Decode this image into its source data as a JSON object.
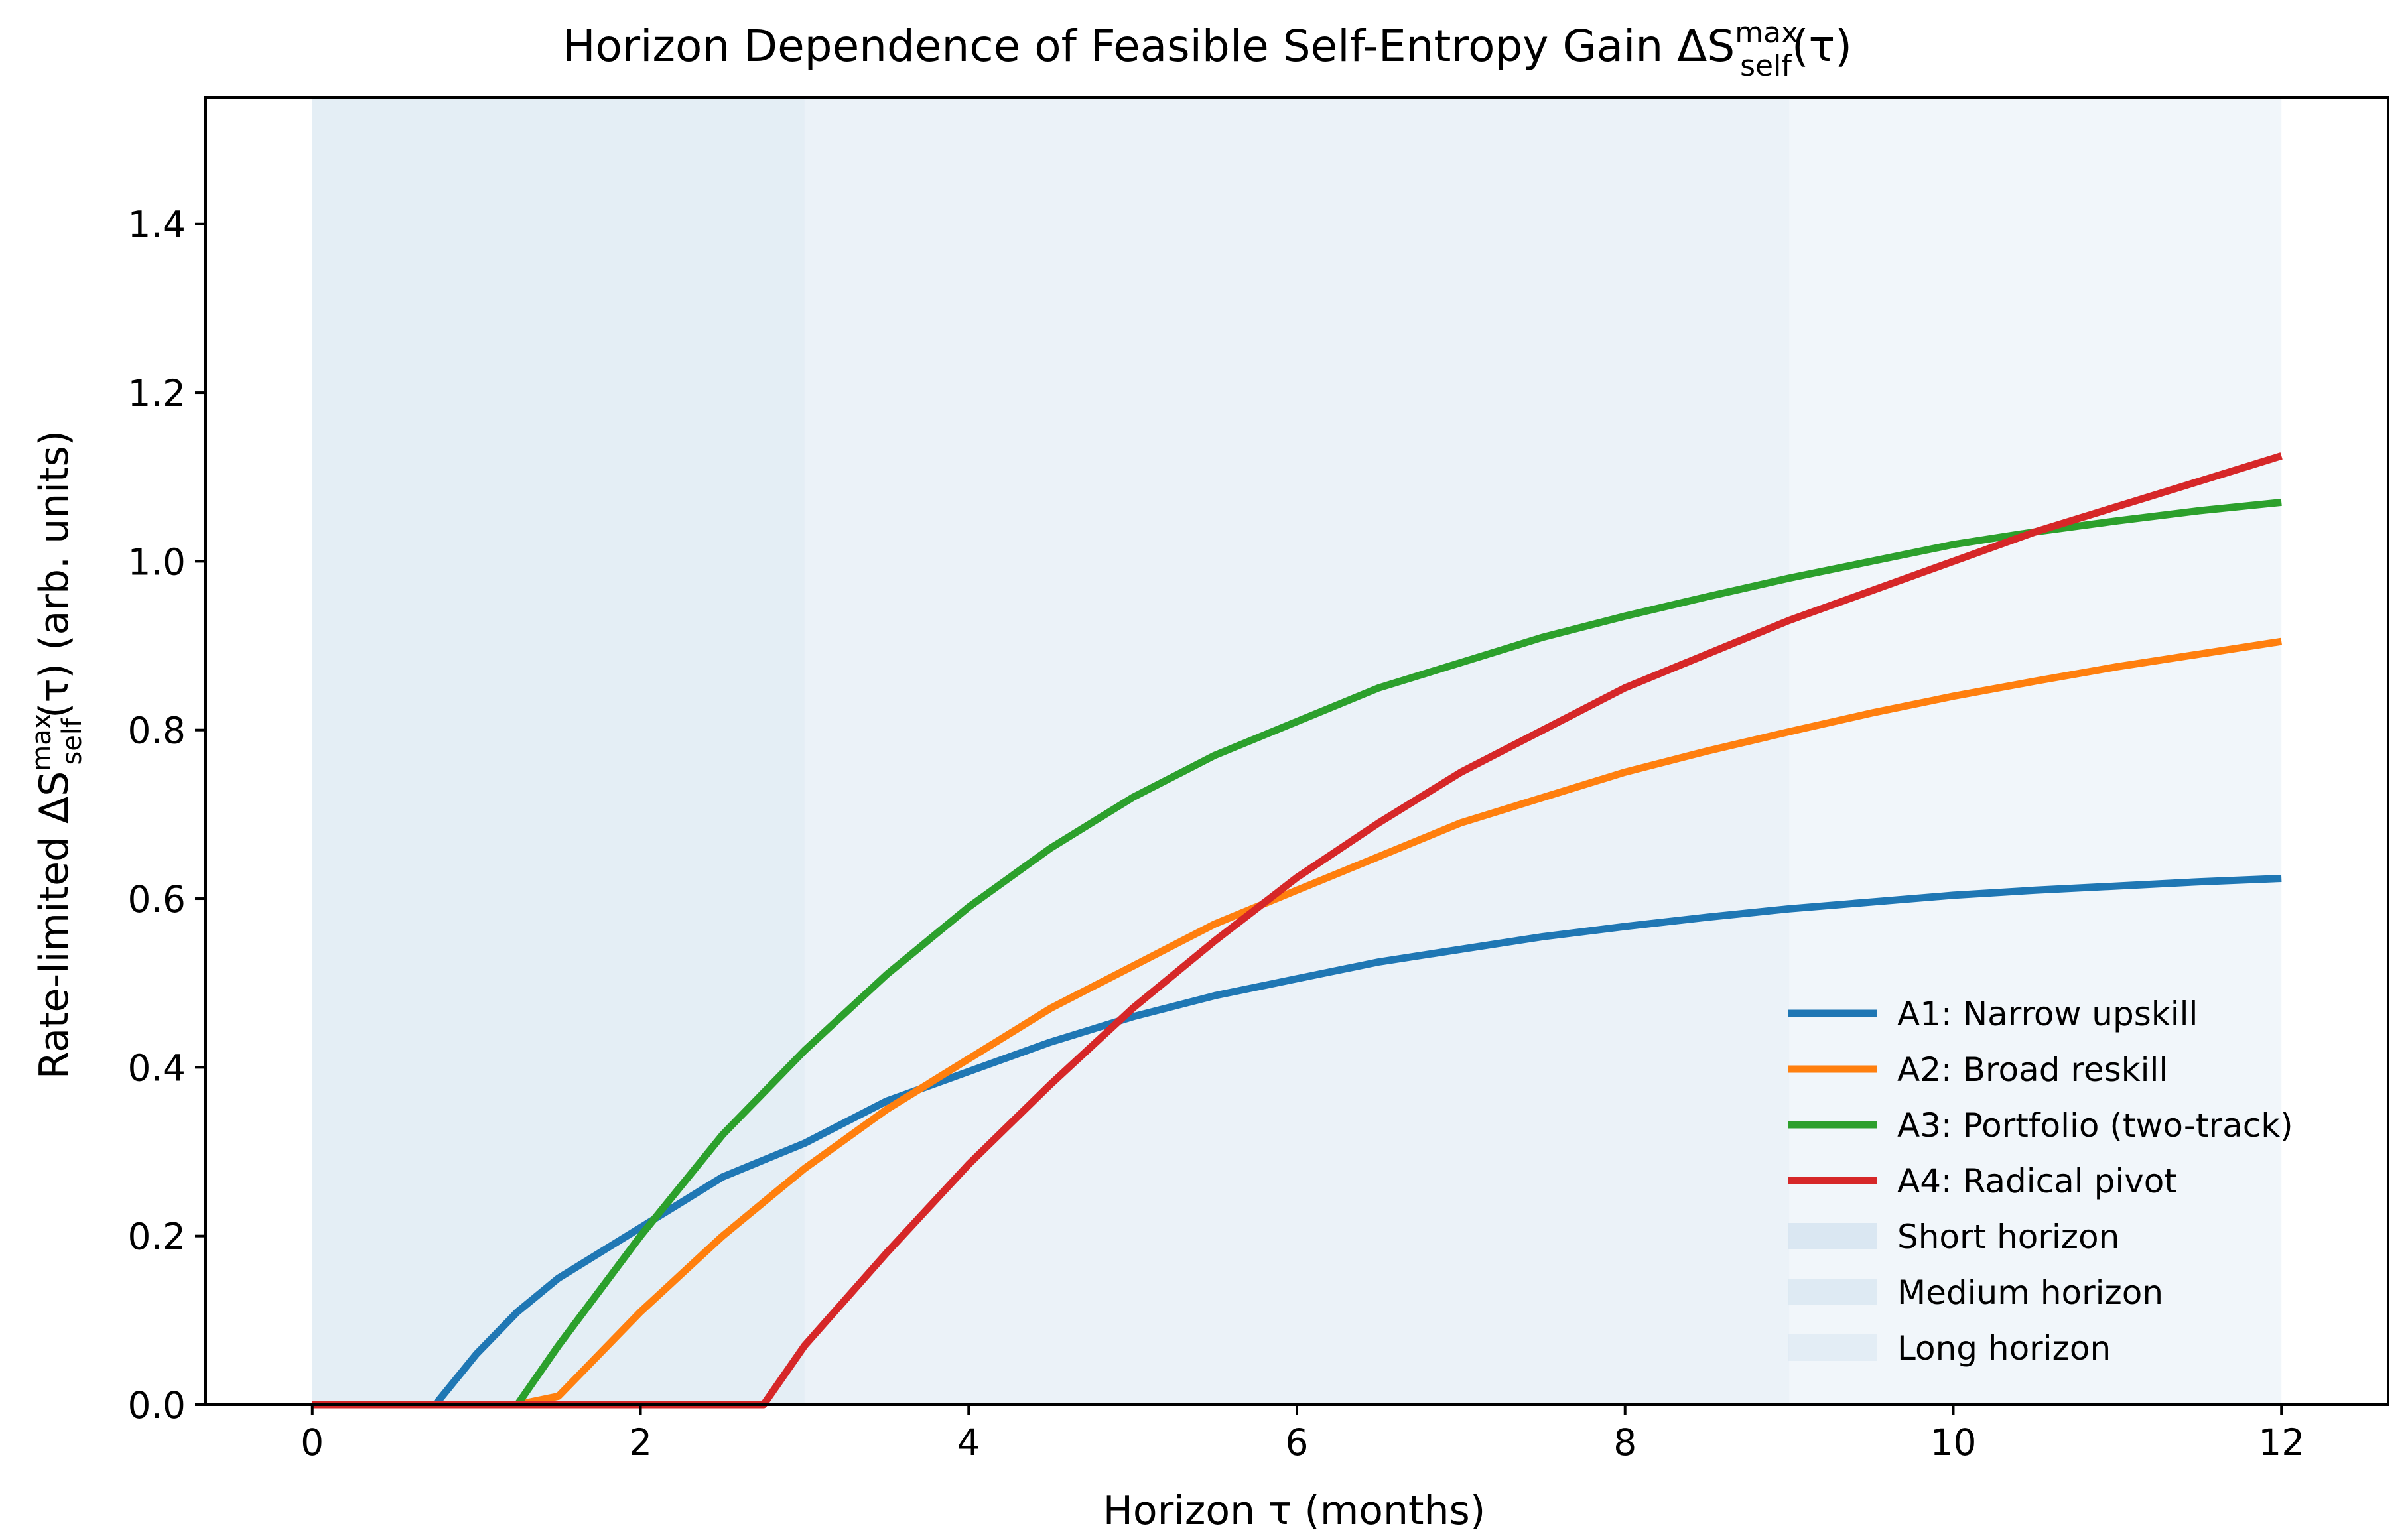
{
  "chart_data": {
    "type": "line",
    "title": "Horizon Dependence of Feasible Self-Entropy Gain ΔS",
    "title_superscript": "max",
    "title_subscript": "self",
    "title_suffix": "(τ)",
    "xlabel": "Horizon τ (months)",
    "ylabel": "Rate-limited ΔS",
    "ylabel_superscript": "max",
    "ylabel_subscript": "self",
    "ylabel_suffix": "(τ) (arb. units)",
    "xlim": [
      -0.65,
      12.65
    ],
    "ylim": [
      0.0,
      1.55
    ],
    "x_ticks": [
      0,
      2,
      4,
      6,
      8,
      10,
      12
    ],
    "y_ticks": [
      0.0,
      0.2,
      0.4,
      0.6,
      0.8,
      1.0,
      1.2,
      1.4
    ],
    "x_tick_labels": [
      "0",
      "2",
      "4",
      "6",
      "8",
      "10",
      "12"
    ],
    "y_tick_labels": [
      "0.0",
      "0.2",
      "0.4",
      "0.6",
      "0.8",
      "1.0",
      "1.2",
      "1.4"
    ],
    "grid": false,
    "legend_position": "lower-right",
    "x": [
      0,
      0.5,
      0.75,
      1.0,
      1.25,
      1.5,
      2.0,
      2.5,
      2.75,
      3.0,
      3.5,
      4.0,
      4.5,
      5.0,
      5.5,
      6.0,
      6.5,
      7.0,
      7.5,
      8.0,
      8.5,
      9.0,
      9.5,
      10.0,
      10.5,
      11.0,
      11.5,
      12.0
    ],
    "series": [
      {
        "name": "A1: Narrow upskill",
        "color": "#1f77b4",
        "values": [
          0,
          0,
          0,
          0.06,
          0.11,
          0.15,
          0.21,
          0.27,
          0.29,
          0.31,
          0.36,
          0.395,
          0.43,
          0.46,
          0.485,
          0.505,
          0.525,
          0.54,
          0.555,
          0.567,
          0.578,
          0.588,
          0.596,
          0.604,
          0.61,
          0.615,
          0.62,
          0.624
        ]
      },
      {
        "name": "A2: Broad reskill",
        "color": "#ff7f0e",
        "values": [
          0,
          0,
          0,
          0,
          0,
          0.01,
          0.11,
          0.2,
          0.24,
          0.28,
          0.35,
          0.41,
          0.47,
          0.52,
          0.57,
          0.61,
          0.65,
          0.69,
          0.72,
          0.75,
          0.775,
          0.798,
          0.82,
          0.84,
          0.858,
          0.875,
          0.89,
          0.905
        ]
      },
      {
        "name": "A3: Portfolio (two-track)",
        "color": "#2ca02c",
        "values": [
          0,
          0,
          0,
          0,
          0,
          0.07,
          0.2,
          0.32,
          0.37,
          0.42,
          0.51,
          0.59,
          0.66,
          0.72,
          0.77,
          0.81,
          0.85,
          0.88,
          0.91,
          0.935,
          0.958,
          0.98,
          1.0,
          1.02,
          1.035,
          1.048,
          1.06,
          1.07
        ]
      },
      {
        "name": "A4: Radical pivot",
        "color": "#d62728",
        "values": [
          0,
          0,
          0,
          0,
          0,
          0,
          0,
          0,
          0,
          0.07,
          0.18,
          0.285,
          0.38,
          0.47,
          0.55,
          0.625,
          0.69,
          0.75,
          0.8,
          0.85,
          0.89,
          0.93,
          0.965,
          1.0,
          1.035,
          1.065,
          1.095,
          1.125
        ]
      }
    ],
    "bands": [
      {
        "name": "Short horizon",
        "x0": 0,
        "x1": 3,
        "color": "#d2e2ef",
        "opacity": 0.6
      },
      {
        "name": "Medium horizon",
        "x0": 3,
        "x1": 9,
        "color": "#d2e2ef",
        "opacity": 0.45
      },
      {
        "name": "Long horizon",
        "x0": 9,
        "x1": 12,
        "color": "#d2e2ef",
        "opacity": 0.3
      }
    ]
  }
}
